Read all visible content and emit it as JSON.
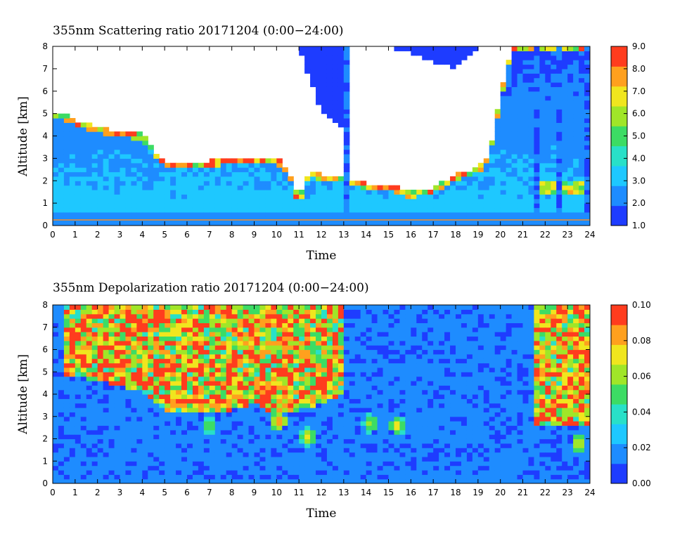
{
  "chart_data": [
    {
      "type": "heatmap",
      "title": "355nm Scattering ratio  20171204 (0:00−24:00)",
      "xlabel": "Time",
      "ylabel": "Altitude [km]",
      "xlim": [
        0,
        24
      ],
      "ylim": [
        0,
        8
      ],
      "x_ticks": [
        "0",
        "1",
        "2",
        "3",
        "4",
        "5",
        "6",
        "7",
        "8",
        "9",
        "10",
        "11",
        "12",
        "13",
        "14",
        "15",
        "16",
        "17",
        "18",
        "19",
        "20",
        "21",
        "22",
        "23",
        "24"
      ],
      "y_ticks": [
        "0",
        "1",
        "2",
        "3",
        "4",
        "5",
        "6",
        "7",
        "8"
      ],
      "colorbar": {
        "range": [
          1.0,
          9.0
        ],
        "ticks": [
          "1.0",
          "2.0",
          "3.0",
          "4.0",
          "5.0",
          "6.0",
          "7.0",
          "8.0",
          "9.0"
        ],
        "colors": [
          "#1e3cff",
          "#1e8cff",
          "#1ec8ff",
          "#28e0c8",
          "#3cdc64",
          "#a0e628",
          "#f0e61e",
          "#ffa01e",
          "#ff3c1e"
        ]
      },
      "features": {
        "mixing_layer_top_km": 0.55,
        "cloud_base_km": [
          [
            0.0,
            5.1
          ],
          [
            0.5,
            5.0
          ],
          [
            1.0,
            4.7
          ],
          [
            2.0,
            4.4
          ],
          [
            3.0,
            4.2
          ],
          [
            4.0,
            4.1
          ],
          [
            4.6,
            3.3
          ],
          [
            5.0,
            2.9
          ],
          [
            6.0,
            2.9
          ],
          [
            7.0,
            2.9
          ],
          [
            8.0,
            3.0
          ],
          [
            9.0,
            3.1
          ],
          [
            10.0,
            3.1
          ],
          [
            10.5,
            2.5
          ],
          [
            11.0,
            1.2
          ],
          [
            11.5,
            2.5
          ],
          [
            12.0,
            2.3
          ],
          [
            13.0,
            2.2
          ],
          [
            14.0,
            1.9
          ],
          [
            15.0,
            1.9
          ],
          [
            16.0,
            1.5
          ],
          [
            17.0,
            1.7
          ],
          [
            18.0,
            2.3
          ],
          [
            19.0,
            2.6
          ],
          [
            19.5,
            3.2
          ],
          [
            20.0,
            5.8
          ],
          [
            20.5,
            8.0
          ]
        ],
        "cloud_top_km": [
          [
            0.0,
            8.0
          ],
          [
            11.0,
            8.0
          ],
          [
            12.0,
            5.0
          ],
          [
            13.0,
            4.4
          ],
          [
            13.3,
            8.0
          ],
          [
            15.0,
            8.0
          ],
          [
            18.0,
            7.0
          ],
          [
            19.0,
            8.0
          ],
          [
            20.0,
            8.0
          ]
        ],
        "low_cloud_layer_km": {
          "x_start": 21.6,
          "x_end": 24.0,
          "altitude": 1.7
        },
        "vertical_streaks_hours": [
          13.2,
          21.6,
          22.0,
          22.6,
          23.0,
          23.9
        ]
      }
    },
    {
      "type": "heatmap",
      "title": "355nm Depolarization ratio  20171204 (0:00−24:00)",
      "xlabel": "Time",
      "ylabel": "Altitude [km]",
      "xlim": [
        0,
        24
      ],
      "ylim": [
        0,
        8
      ],
      "x_ticks": [
        "0",
        "1",
        "2",
        "3",
        "4",
        "5",
        "6",
        "7",
        "8",
        "9",
        "10",
        "11",
        "12",
        "13",
        "14",
        "15",
        "16",
        "17",
        "18",
        "19",
        "20",
        "21",
        "22",
        "23",
        "24"
      ],
      "y_ticks": [
        "0",
        "1",
        "2",
        "3",
        "4",
        "5",
        "6",
        "7",
        "8"
      ],
      "colorbar": {
        "range": [
          0.0,
          0.1
        ],
        "ticks": [
          "0.00",
          "0.02",
          "0.04",
          "0.06",
          "0.08",
          "0.10"
        ],
        "colors": [
          "#1e3cff",
          "#1e8cff",
          "#1ec8ff",
          "#28e0c8",
          "#3cdc64",
          "#a0e628",
          "#f0e61e",
          "#ffa01e",
          "#ff3c1e"
        ]
      },
      "features": {
        "noisy_upper_region_hours": [
          [
            0.5,
            13.0
          ],
          [
            21.6,
            24.0
          ]
        ],
        "noisy_lower_boundary_km": [
          [
            0.0,
            5.0
          ],
          [
            1.0,
            4.8
          ],
          [
            2.0,
            4.6
          ],
          [
            3.0,
            4.4
          ],
          [
            4.0,
            4.1
          ],
          [
            5.0,
            3.3
          ],
          [
            6.0,
            3.1
          ],
          [
            7.0,
            3.1
          ],
          [
            8.0,
            3.3
          ],
          [
            9.0,
            3.6
          ],
          [
            10.0,
            3.1
          ],
          [
            11.0,
            3.3
          ],
          [
            12.0,
            3.6
          ],
          [
            13.0,
            4.0
          ]
        ],
        "high_depol_blobs": [
          {
            "x": 10.1,
            "y": 2.8,
            "strength": 0.1
          },
          {
            "x": 7.0,
            "y": 2.6,
            "strength": 0.06
          },
          {
            "x": 11.4,
            "y": 2.1,
            "strength": 0.08
          },
          {
            "x": 15.4,
            "y": 2.6,
            "strength": 0.08
          },
          {
            "x": 14.2,
            "y": 2.7,
            "strength": 0.07
          },
          {
            "x": 23.5,
            "y": 1.8,
            "strength": 0.08
          }
        ]
      }
    }
  ]
}
